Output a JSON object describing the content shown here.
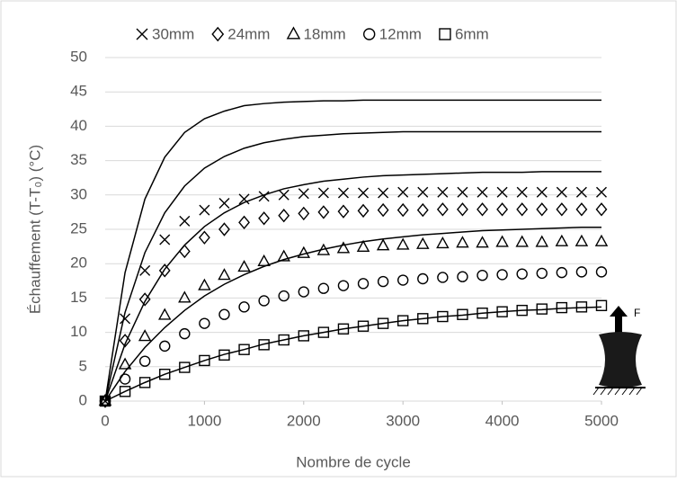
{
  "chart_data": {
    "type": "scatter",
    "x_label": "Nombre de cycle",
    "y_label": "Échauffement (T-T₀) (°C)",
    "annotation": "F",
    "x": [
      0,
      200,
      400,
      600,
      800,
      1000,
      1200,
      1400,
      1600,
      1800,
      2000,
      2200,
      2400,
      2600,
      2800,
      3000,
      3200,
      3400,
      3600,
      3800,
      4000,
      4200,
      4400,
      4600,
      4800,
      5000
    ],
    "xlim": [
      0,
      5000
    ],
    "xticks": [
      0,
      1000,
      2000,
      3000,
      4000,
      5000
    ],
    "ylim": [
      0,
      50
    ],
    "yticks": [
      0,
      5,
      10,
      15,
      20,
      25,
      30,
      35,
      40,
      45,
      50
    ],
    "grid": true,
    "legend": "top",
    "series": [
      {
        "name": "30mm",
        "marker": "x",
        "color": "#000000",
        "values": [
          0,
          12,
          19,
          23.5,
          26.2,
          27.8,
          28.8,
          29.4,
          29.8,
          30,
          30.2,
          30.3,
          30.3,
          30.3,
          30.3,
          30.4,
          30.4,
          30.4,
          30.4,
          30.4,
          30.4,
          30.4,
          30.4,
          30.4,
          30.4,
          30.4
        ]
      },
      {
        "name": "24mm",
        "marker": "diamond",
        "color": "#000000",
        "values": [
          0,
          8.8,
          14.8,
          19,
          21.8,
          23.8,
          25,
          26,
          26.6,
          27,
          27.3,
          27.5,
          27.6,
          27.7,
          27.8,
          27.8,
          27.8,
          27.9,
          27.9,
          27.9,
          27.9,
          27.9,
          27.9,
          27.9,
          27.9,
          27.9
        ]
      },
      {
        "name": "18mm",
        "marker": "triangle",
        "color": "#000000",
        "values": [
          0,
          5.3,
          9.4,
          12.5,
          15,
          16.8,
          18.3,
          19.5,
          20.3,
          21,
          21.5,
          21.9,
          22.2,
          22.4,
          22.6,
          22.7,
          22.8,
          22.9,
          23,
          23,
          23.1,
          23.1,
          23.1,
          23.2,
          23.2,
          23.2
        ]
      },
      {
        "name": "12mm",
        "marker": "circle",
        "color": "#000000",
        "values": [
          0,
          3.2,
          5.8,
          8,
          9.8,
          11.3,
          12.6,
          13.7,
          14.6,
          15.3,
          15.9,
          16.4,
          16.8,
          17.1,
          17.4,
          17.6,
          17.8,
          18,
          18.1,
          18.3,
          18.4,
          18.5,
          18.6,
          18.7,
          18.8,
          18.8
        ]
      },
      {
        "name": "6mm",
        "marker": "square",
        "color": "#000000",
        "values": [
          0,
          1.4,
          2.7,
          3.9,
          4.9,
          5.9,
          6.7,
          7.5,
          8.2,
          8.9,
          9.5,
          10,
          10.5,
          10.9,
          11.3,
          11.7,
          12,
          12.3,
          12.6,
          12.8,
          13,
          13.2,
          13.4,
          13.6,
          13.7,
          13.9
        ]
      },
      {
        "marker": "line",
        "color": "#000000",
        "values": [
          0,
          18.7,
          29.4,
          35.5,
          39.1,
          41.1,
          42.2,
          43,
          43.3,
          43.5,
          43.6,
          43.7,
          43.7,
          43.8,
          43.8,
          43.8,
          43.8,
          43.8,
          43.8,
          43.8,
          43.8,
          43.8,
          43.8,
          43.8,
          43.8,
          43.8
        ]
      },
      {
        "marker": "line",
        "color": "#000000",
        "values": [
          0,
          12.9,
          21.6,
          27.4,
          31.3,
          33.9,
          35.6,
          36.8,
          37.6,
          38.1,
          38.5,
          38.7,
          38.9,
          39,
          39.1,
          39.2,
          39.2,
          39.2,
          39.2,
          39.2,
          39.2,
          39.2,
          39.2,
          39.2,
          39.2,
          39.2
        ]
      },
      {
        "marker": "line",
        "color": "#000000",
        "values": [
          0,
          8.3,
          14.5,
          19.2,
          22.7,
          25.4,
          27.4,
          28.9,
          30,
          30.9,
          31.5,
          32,
          32.3,
          32.6,
          32.8,
          32.9,
          33,
          33.1,
          33.2,
          33.3,
          33.3,
          33.3,
          33.4,
          33.4,
          33.4,
          33.4
        ]
      },
      {
        "marker": "line",
        "color": "#000000",
        "values": [
          0,
          4.3,
          7.8,
          10.7,
          13.2,
          15.3,
          17,
          18.4,
          19.6,
          20.6,
          21.4,
          22.1,
          22.7,
          23.2,
          23.6,
          23.9,
          24.2,
          24.4,
          24.6,
          24.8,
          24.9,
          25,
          25.1,
          25.2,
          25.3,
          25.3
        ]
      },
      {
        "marker": "line",
        "color": "#000000",
        "values": [
          0,
          1.4,
          2.7,
          3.9,
          4.9,
          5.9,
          6.8,
          7.5,
          8.3,
          8.9,
          9.5,
          10,
          10.5,
          10.9,
          11.3,
          11.7,
          12,
          12.3,
          12.5,
          12.8,
          13,
          13.2,
          13.3,
          13.5,
          13.6,
          13.7
        ]
      }
    ]
  }
}
